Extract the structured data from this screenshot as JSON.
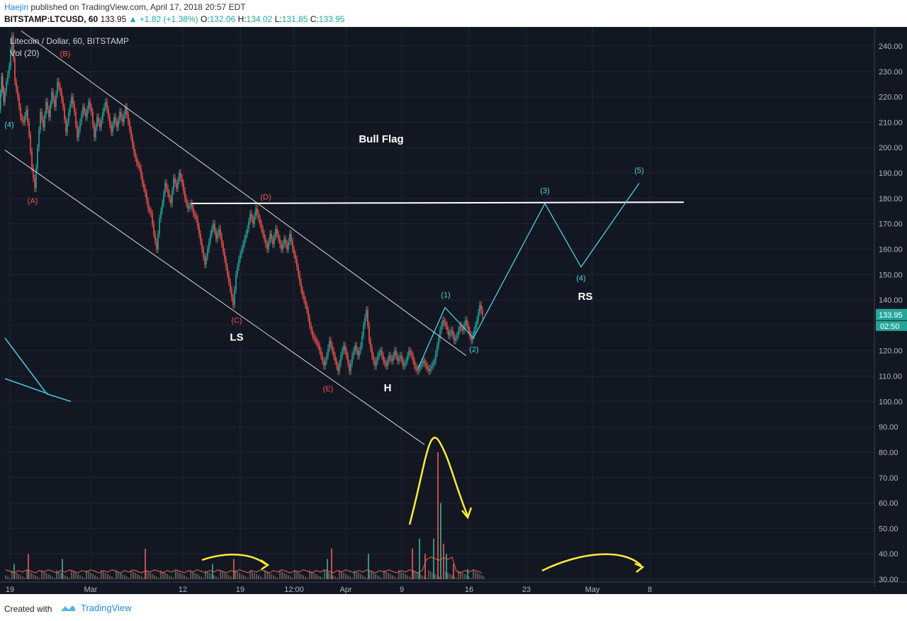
{
  "header": {
    "author": "Haejin",
    "published": "published on TradingView.com, April 17, 2018 20:57 EDT",
    "symbol": "BITSTAMP:LTCUSD, 60",
    "last": "133.95",
    "change": "+1.82 (+1.38%)",
    "o_label": "O:",
    "o": "132.06",
    "h_label": "H:",
    "h": "134.02",
    "l_label": "L:",
    "l": "131.85",
    "c_label": "C:",
    "c": "133.95"
  },
  "footer": {
    "created_with": "Created with",
    "brand": "TradingView"
  },
  "chart_data": {
    "type": "candlestick",
    "title": "Litecoin / Dollar, 60, BITSTAMP",
    "indicator": "Vol (20)",
    "y_ticks": [
      30,
      40,
      50,
      60,
      70,
      80,
      90,
      100,
      110,
      120,
      130,
      140,
      150,
      160,
      170,
      180,
      190,
      200,
      210,
      220,
      230,
      240
    ],
    "ylim": [
      25,
      248
    ],
    "x_ticks": [
      "19",
      "Mar",
      "12",
      "19",
      "12:00",
      "Apr",
      "9",
      "16",
      "23",
      "May",
      "8"
    ],
    "price_label": "133.95",
    "countdown": "02:50",
    "colors": {
      "up": "#26a69a",
      "down": "#ef5350",
      "annotation_wave": "#4dd0e1",
      "highlight": "#ffeb3b",
      "price_tag": "#26a69a"
    },
    "price_path": [
      [
        0,
        215
      ],
      [
        3,
        228
      ],
      [
        6,
        218
      ],
      [
        10,
        226
      ],
      [
        14,
        232
      ],
      [
        18,
        244
      ],
      [
        22,
        226
      ],
      [
        26,
        220
      ],
      [
        30,
        212
      ],
      [
        34,
        210
      ],
      [
        38,
        215
      ],
      [
        42,
        205
      ],
      [
        46,
        192
      ],
      [
        50,
        184
      ],
      [
        54,
        200
      ],
      [
        58,
        214
      ],
      [
        62,
        208
      ],
      [
        66,
        218
      ],
      [
        70,
        212
      ],
      [
        74,
        222
      ],
      [
        78,
        216
      ],
      [
        82,
        226
      ],
      [
        86,
        222
      ],
      [
        90,
        216
      ],
      [
        94,
        206
      ],
      [
        98,
        214
      ],
      [
        102,
        220
      ],
      [
        106,
        214
      ],
      [
        110,
        204
      ],
      [
        114,
        210
      ],
      [
        118,
        216
      ],
      [
        122,
        212
      ],
      [
        126,
        218
      ],
      [
        130,
        214
      ],
      [
        134,
        204
      ],
      [
        138,
        212
      ],
      [
        142,
        208
      ],
      [
        146,
        214
      ],
      [
        150,
        218
      ],
      [
        154,
        212
      ],
      [
        158,
        206
      ],
      [
        162,
        212
      ],
      [
        166,
        208
      ],
      [
        170,
        214
      ],
      [
        174,
        210
      ],
      [
        178,
        216
      ],
      [
        182,
        210
      ],
      [
        186,
        204
      ],
      [
        190,
        198
      ],
      [
        194,
        194
      ],
      [
        198,
        192
      ],
      [
        202,
        186
      ],
      [
        206,
        182
      ],
      [
        210,
        176
      ],
      [
        214,
        174
      ],
      [
        218,
        166
      ],
      [
        222,
        160
      ],
      [
        226,
        172
      ],
      [
        230,
        178
      ],
      [
        234,
        186
      ],
      [
        238,
        182
      ],
      [
        242,
        178
      ],
      [
        246,
        188
      ],
      [
        250,
        184
      ],
      [
        254,
        190
      ],
      [
        258,
        186
      ],
      [
        262,
        180
      ],
      [
        266,
        176
      ],
      [
        270,
        178
      ],
      [
        274,
        174
      ],
      [
        278,
        172
      ],
      [
        282,
        166
      ],
      [
        286,
        160
      ],
      [
        290,
        154
      ],
      [
        294,
        160
      ],
      [
        298,
        166
      ],
      [
        302,
        170
      ],
      [
        306,
        164
      ],
      [
        310,
        168
      ],
      [
        314,
        162
      ],
      [
        318,
        156
      ],
      [
        322,
        150
      ],
      [
        326,
        144
      ],
      [
        330,
        138
      ],
      [
        334,
        150
      ],
      [
        338,
        156
      ],
      [
        342,
        160
      ],
      [
        346,
        164
      ],
      [
        350,
        168
      ],
      [
        354,
        174
      ],
      [
        358,
        170
      ],
      [
        362,
        176
      ],
      [
        366,
        172
      ],
      [
        370,
        168
      ],
      [
        374,
        164
      ],
      [
        378,
        160
      ],
      [
        382,
        166
      ],
      [
        386,
        162
      ],
      [
        390,
        168
      ],
      [
        394,
        164
      ],
      [
        398,
        160
      ],
      [
        402,
        164
      ],
      [
        406,
        160
      ],
      [
        410,
        166
      ],
      [
        414,
        160
      ],
      [
        418,
        156
      ],
      [
        422,
        150
      ],
      [
        426,
        144
      ],
      [
        430,
        140
      ],
      [
        434,
        136
      ],
      [
        438,
        130
      ],
      [
        442,
        126
      ],
      [
        446,
        124
      ],
      [
        450,
        122
      ],
      [
        454,
        118
      ],
      [
        458,
        114
      ],
      [
        462,
        118
      ],
      [
        466,
        124
      ],
      [
        470,
        120
      ],
      [
        474,
        116
      ],
      [
        478,
        112
      ],
      [
        482,
        118
      ],
      [
        486,
        122
      ],
      [
        490,
        118
      ],
      [
        494,
        112
      ],
      [
        498,
        118
      ],
      [
        502,
        122
      ],
      [
        506,
        118
      ],
      [
        510,
        122
      ],
      [
        514,
        130
      ],
      [
        518,
        136
      ],
      [
        522,
        124
      ],
      [
        526,
        118
      ],
      [
        530,
        114
      ],
      [
        534,
        118
      ],
      [
        538,
        120
      ],
      [
        542,
        116
      ],
      [
        546,
        114
      ],
      [
        550,
        118
      ],
      [
        554,
        116
      ],
      [
        558,
        120
      ],
      [
        562,
        116
      ],
      [
        566,
        118
      ],
      [
        570,
        114
      ],
      [
        574,
        116
      ],
      [
        578,
        120
      ],
      [
        582,
        118
      ],
      [
        586,
        114
      ],
      [
        590,
        112
      ],
      [
        594,
        114
      ],
      [
        598,
        116
      ],
      [
        602,
        114
      ],
      [
        606,
        112
      ],
      [
        610,
        114
      ],
      [
        614,
        116
      ],
      [
        618,
        122
      ],
      [
        622,
        128
      ],
      [
        626,
        132
      ],
      [
        630,
        130
      ],
      [
        634,
        126
      ],
      [
        638,
        128
      ],
      [
        642,
        124
      ],
      [
        646,
        126
      ],
      [
        650,
        130
      ],
      [
        654,
        128
      ],
      [
        658,
        132
      ],
      [
        662,
        128
      ],
      [
        666,
        124
      ],
      [
        670,
        128
      ],
      [
        674,
        132
      ],
      [
        678,
        138
      ],
      [
        682,
        134
      ]
    ],
    "wave_projection": [
      [
        590,
        113
      ],
      [
        628,
        137
      ],
      [
        668,
        125
      ],
      [
        769,
        178
      ],
      [
        820,
        153
      ],
      [
        902,
        186
      ]
    ],
    "wave_labels": [
      {
        "t": "(1)",
        "x": 629,
        "y": 141
      },
      {
        "t": "(2)",
        "x": 669,
        "y": 119.5
      },
      {
        "t": "(3)",
        "x": 769,
        "y": 182
      },
      {
        "t": "(4)",
        "x": 820,
        "y": 147.5
      },
      {
        "t": "(5)",
        "x": 902,
        "y": 190
      },
      {
        "t": "(4)",
        "x": 13,
        "y": 208
      }
    ],
    "corrective_labels": [
      {
        "t": "(A)",
        "x": 46,
        "y": 178
      },
      {
        "t": "(B)",
        "x": 92,
        "y": 236
      },
      {
        "t": "(C)",
        "x": 334,
        "y": 131
      },
      {
        "t": "(D)",
        "x": 375,
        "y": 179.5
      },
      {
        "t": "(E)",
        "x": 463,
        "y": 104
      }
    ],
    "annotations": [
      {
        "t": "Bull Flag",
        "x": 538,
        "y": 202
      },
      {
        "t": "LS",
        "x": 334,
        "y": 124
      },
      {
        "t": "H",
        "x": 547,
        "y": 104
      },
      {
        "t": "RS",
        "x": 826,
        "y": 140
      }
    ],
    "resistance_line": {
      "x1": 270,
      "x2": 965,
      "y1": 178,
      "y2": 178.5
    },
    "channel_lines": [
      {
        "x1": 30,
        "y1": 246,
        "x2": 658,
        "y2": 118
      },
      {
        "x1": 7,
        "y1": 199,
        "x2": 599,
        "y2": 83
      }
    ],
    "volume_spikes": [
      [
        20,
        36
      ],
      [
        40,
        40
      ],
      [
        88,
        38
      ],
      [
        205,
        42
      ],
      [
        300,
        36
      ],
      [
        330,
        38
      ],
      [
        462,
        38
      ],
      [
        468,
        42
      ],
      [
        520,
        40
      ],
      [
        582,
        42
      ],
      [
        592,
        46
      ],
      [
        600,
        40
      ],
      [
        612,
        46
      ],
      [
        618,
        80
      ],
      [
        622,
        60
      ],
      [
        626,
        44
      ],
      [
        630,
        40
      ],
      [
        640,
        36
      ],
      [
        660,
        34
      ]
    ]
  }
}
